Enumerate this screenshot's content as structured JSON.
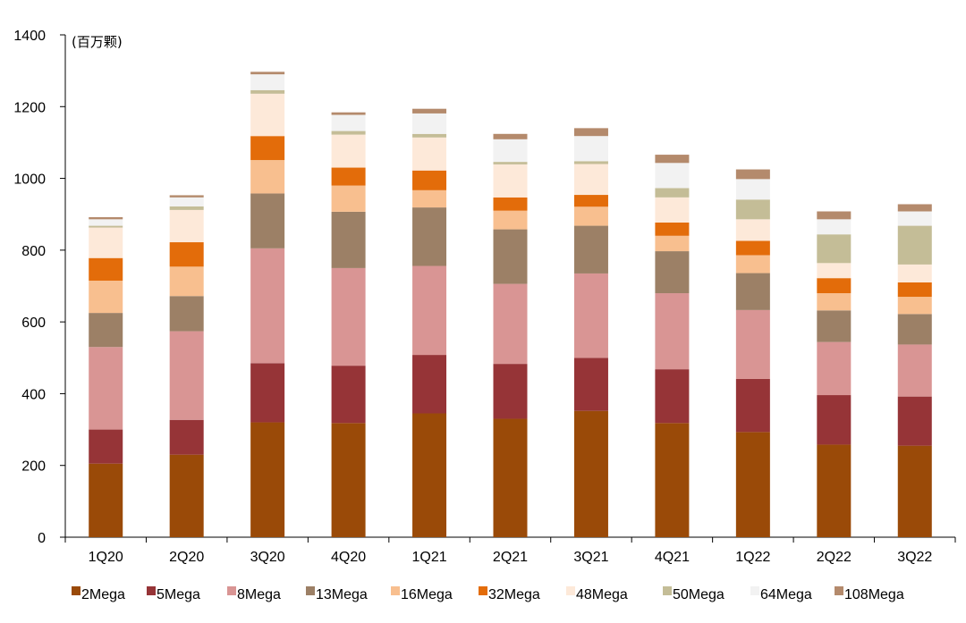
{
  "chart_data": {
    "type": "bar",
    "stacked": true,
    "title": "",
    "unit_label": "(百万颗)",
    "xlabel": "",
    "ylabel": "",
    "ylim": [
      0,
      1400
    ],
    "yticks": [
      0,
      200,
      400,
      600,
      800,
      1000,
      1200,
      1400
    ],
    "grid": false,
    "legend_position": "bottom",
    "categories": [
      "1Q20",
      "2Q20",
      "3Q20",
      "4Q20",
      "1Q21",
      "2Q21",
      "3Q21",
      "4Q21",
      "1Q22",
      "2Q22",
      "3Q22"
    ],
    "series": [
      {
        "name": "2Mega",
        "color": "#9a4a08",
        "values": [
          205,
          230,
          320,
          318,
          345,
          330,
          352,
          318,
          293,
          258,
          255
        ]
      },
      {
        "name": "5Mega",
        "color": "#963437",
        "values": [
          95,
          97,
          165,
          160,
          163,
          153,
          148,
          150,
          148,
          138,
          137
        ]
      },
      {
        "name": "8Mega",
        "color": "#d99594",
        "values": [
          230,
          247,
          320,
          272,
          248,
          223,
          235,
          212,
          192,
          148,
          145
        ]
      },
      {
        "name": "13Mega",
        "color": "#9c8066",
        "values": [
          95,
          98,
          153,
          157,
          163,
          152,
          133,
          117,
          103,
          88,
          85
        ]
      },
      {
        "name": "16Mega",
        "color": "#f8bf8f",
        "values": [
          90,
          82,
          93,
          73,
          48,
          52,
          53,
          43,
          50,
          48,
          48
        ]
      },
      {
        "name": "32Mega",
        "color": "#e36c0a",
        "values": [
          63,
          68,
          67,
          50,
          55,
          37,
          33,
          37,
          40,
          42,
          40
        ]
      },
      {
        "name": "48Mega",
        "color": "#fde9d9",
        "values": [
          85,
          90,
          118,
          92,
          92,
          92,
          86,
          70,
          60,
          42,
          50
        ]
      },
      {
        "name": "50Mega",
        "color": "#c4bd97",
        "values": [
          5,
          10,
          10,
          10,
          10,
          7,
          8,
          26,
          55,
          80,
          108
        ]
      },
      {
        "name": "64Mega",
        "color": "#f2f2f2",
        "values": [
          18,
          25,
          44,
          45,
          57,
          63,
          70,
          70,
          57,
          42,
          40
        ]
      },
      {
        "name": "108Mega",
        "color": "#b48a6c",
        "values": [
          6,
          6,
          7,
          7,
          13,
          15,
          22,
          23,
          27,
          22,
          20
        ]
      }
    ]
  }
}
